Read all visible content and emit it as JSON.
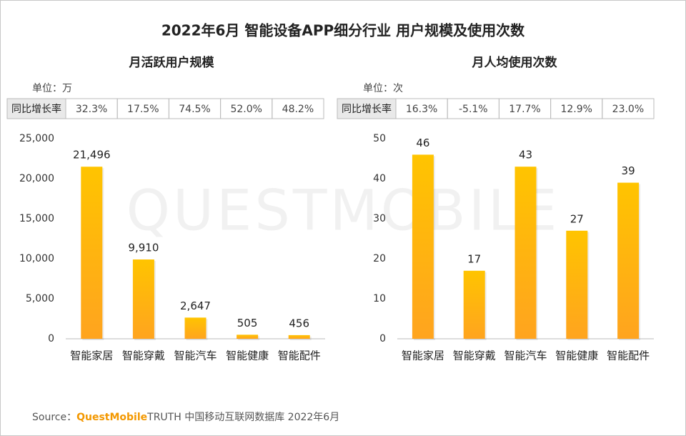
{
  "title": "2022年6月 智能设备APP细分行业 用户规模及使用次数",
  "watermark": "QUESTMOBILE",
  "source": [
    "Source：",
    "QuestMobile",
    "TRUTH 中国移动互联网数据库 2022年6月"
  ],
  "chart_data": [
    {
      "type": "bar",
      "title": "月活跃用户规模",
      "unit": "单位：万",
      "yoy": {
        "label": "同比增长率",
        "values": [
          "32.3%",
          "17.5%",
          "74.5%",
          "52.0%",
          "48.2%"
        ]
      },
      "categories": [
        "智能家居",
        "智能穿戴",
        "智能汽车",
        "智能健康",
        "智能配件"
      ],
      "values": [
        21496,
        9910,
        2647,
        505,
        456
      ],
      "value_labels": [
        "21,496",
        "9,910",
        "2,647",
        "505",
        "456"
      ],
      "color": "#FFC400",
      "ylim": [
        0,
        25000
      ],
      "yticks": [
        0,
        {
          "value": 5000,
          "label": "5,000"
        },
        {
          "value": 10000,
          "label": "10,000"
        },
        {
          "value": 15000,
          "label": "15,000"
        },
        {
          "value": 20000,
          "label": "20,000"
        },
        {
          "value": 25000,
          "label": "25,000"
        }
      ],
      "grid": false
    },
    {
      "type": "bar",
      "title": "月人均使用次数",
      "unit": "单位：次",
      "yoy": {
        "label": "同比增长率",
        "values": [
          "16.3%",
          "-5.1%",
          "17.7%",
          "12.9%",
          "23.0%"
        ]
      },
      "categories": [
        "智能家居",
        "智能穿戴",
        "智能汽车",
        "智能健康",
        "智能配件"
      ],
      "values": [
        46,
        17,
        43,
        27,
        39
      ],
      "color": "#FFC400",
      "ylim": [
        0,
        50
      ],
      "yticks": [
        0,
        10,
        20,
        30,
        40,
        50
      ],
      "grid": false
    }
  ]
}
